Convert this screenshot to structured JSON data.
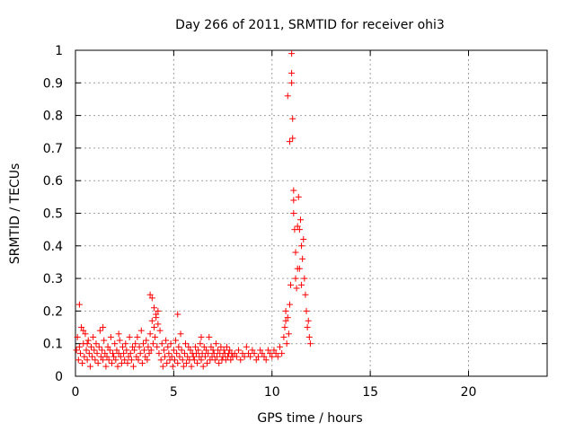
{
  "chart_data": {
    "type": "scatter",
    "title": "Day 266 of 2011, SRMTID for receiver ohi3",
    "xlabel": "GPS time / hours",
    "ylabel": "SRMTID / TECUs",
    "xlim": [
      0,
      24
    ],
    "ylim": [
      0,
      1
    ],
    "xticks": [
      0,
      5,
      10,
      15,
      20
    ],
    "xtick_labels": [
      "0",
      "5",
      "10",
      "15",
      "20"
    ],
    "yticks": [
      0,
      0.1,
      0.2,
      0.3,
      0.4,
      0.5,
      0.6,
      0.7,
      0.8,
      0.9,
      1
    ],
    "ytick_labels": [
      "0",
      "0.1",
      "0.2",
      "0.3",
      "0.4",
      "0.5",
      "0.6",
      "0.7",
      "0.8",
      "0.9",
      "1"
    ],
    "grid": true,
    "marker": "+",
    "marker_color": "#ff0000",
    "series": [
      {
        "name": "SRMTID",
        "x": [
          0.05,
          0.1,
          0.15,
          0.2,
          0.25,
          0.3,
          0.35,
          0.4,
          0.45,
          0.5,
          0.55,
          0.6,
          0.65,
          0.7,
          0.75,
          0.8,
          0.85,
          0.9,
          0.95,
          1.0,
          1.05,
          1.1,
          1.15,
          1.2,
          1.25,
          1.3,
          1.35,
          1.4,
          1.45,
          1.5,
          1.55,
          1.6,
          1.65,
          1.7,
          1.75,
          1.8,
          1.85,
          1.9,
          1.95,
          2.0,
          2.05,
          2.1,
          2.15,
          2.2,
          2.25,
          2.3,
          2.35,
          2.4,
          2.45,
          2.5,
          2.55,
          2.6,
          2.65,
          2.7,
          2.75,
          2.8,
          2.85,
          2.9,
          2.95,
          3.0,
          3.05,
          3.1,
          3.15,
          3.2,
          3.25,
          3.3,
          3.35,
          3.4,
          3.45,
          3.5,
          3.55,
          3.6,
          3.65,
          3.7,
          3.75,
          3.8,
          3.85,
          3.9,
          3.95,
          4.0,
          4.05,
          4.1,
          4.15,
          4.2,
          4.25,
          4.3,
          4.35,
          4.4,
          4.45,
          4.5,
          4.55,
          4.6,
          4.65,
          4.7,
          4.75,
          4.8,
          4.85,
          4.9,
          4.95,
          5.0,
          5.05,
          5.1,
          5.15,
          5.2,
          5.25,
          5.3,
          5.35,
          5.4,
          5.45,
          5.5,
          5.55,
          5.6,
          5.65,
          5.7,
          5.75,
          5.8,
          5.85,
          5.9,
          5.95,
          6.0,
          6.05,
          6.1,
          6.15,
          6.2,
          6.25,
          6.3,
          6.35,
          6.4,
          6.45,
          6.5,
          6.55,
          6.6,
          6.65,
          6.7,
          6.75,
          6.8,
          6.85,
          6.9,
          6.95,
          7.0,
          7.05,
          7.1,
          7.15,
          7.2,
          7.25,
          7.3,
          7.35,
          7.4,
          7.45,
          7.5,
          7.55,
          7.6,
          7.65,
          7.7,
          7.75,
          7.8,
          7.85,
          7.9,
          7.95,
          8.0,
          8.1,
          8.2,
          8.3,
          8.4,
          8.5,
          8.6,
          8.7,
          8.8,
          8.9,
          9.0,
          9.1,
          9.2,
          9.3,
          9.4,
          9.5,
          9.6,
          9.7,
          9.8,
          9.9,
          10.0,
          10.1,
          10.2,
          10.3,
          10.4,
          10.5,
          10.6,
          10.65,
          10.7,
          10.75,
          10.8,
          10.85,
          10.9,
          10.95,
          11.0,
          11.0,
          11.0,
          11.05,
          11.05,
          11.1,
          11.1,
          11.15,
          11.2,
          11.2,
          11.25,
          11.3,
          11.35,
          11.4,
          11.45,
          11.5,
          11.55,
          11.6,
          11.65,
          11.7,
          11.75,
          11.8,
          11.85,
          11.9,
          11.95,
          0.2,
          0.4,
          0.6,
          1.4,
          2.2,
          3.8,
          3.9,
          4.0,
          4.1,
          4.2,
          5.2,
          6.4,
          10.7,
          10.8,
          10.9,
          11.1,
          11.3,
          11.4,
          11.5
        ],
        "y": [
          0.08,
          0.12,
          0.05,
          0.09,
          0.07,
          0.15,
          0.04,
          0.1,
          0.06,
          0.13,
          0.08,
          0.05,
          0.11,
          0.07,
          0.03,
          0.09,
          0.06,
          0.12,
          0.08,
          0.05,
          0.1,
          0.07,
          0.04,
          0.09,
          0.14,
          0.06,
          0.08,
          0.05,
          0.11,
          0.07,
          0.03,
          0.06,
          0.09,
          0.05,
          0.08,
          0.12,
          0.04,
          0.07,
          0.06,
          0.1,
          0.05,
          0.08,
          0.03,
          0.07,
          0.11,
          0.06,
          0.04,
          0.09,
          0.07,
          0.05,
          0.1,
          0.08,
          0.04,
          0.06,
          0.12,
          0.07,
          0.05,
          0.09,
          0.03,
          0.08,
          0.1,
          0.06,
          0.12,
          0.05,
          0.09,
          0.07,
          0.14,
          0.04,
          0.1,
          0.08,
          0.06,
          0.11,
          0.05,
          0.09,
          0.07,
          0.13,
          0.08,
          0.17,
          0.1,
          0.15,
          0.12,
          0.18,
          0.09,
          0.2,
          0.07,
          0.14,
          0.05,
          0.1,
          0.03,
          0.08,
          0.06,
          0.11,
          0.04,
          0.09,
          0.07,
          0.05,
          0.1,
          0.06,
          0.03,
          0.08,
          0.05,
          0.11,
          0.07,
          0.04,
          0.09,
          0.06,
          0.13,
          0.08,
          0.05,
          0.03,
          0.07,
          0.1,
          0.04,
          0.06,
          0.09,
          0.05,
          0.08,
          0.03,
          0.07,
          0.06,
          0.05,
          0.09,
          0.07,
          0.04,
          0.08,
          0.06,
          0.1,
          0.05,
          0.07,
          0.03,
          0.09,
          0.06,
          0.08,
          0.04,
          0.07,
          0.12,
          0.05,
          0.09,
          0.06,
          0.08,
          0.07,
          0.05,
          0.1,
          0.06,
          0.08,
          0.04,
          0.07,
          0.09,
          0.05,
          0.06,
          0.08,
          0.07,
          0.05,
          0.09,
          0.06,
          0.07,
          0.08,
          0.05,
          0.07,
          0.06,
          0.07,
          0.06,
          0.08,
          0.05,
          0.07,
          0.06,
          0.09,
          0.07,
          0.06,
          0.08,
          0.07,
          0.05,
          0.06,
          0.08,
          0.07,
          0.06,
          0.05,
          0.08,
          0.07,
          0.06,
          0.08,
          0.07,
          0.06,
          0.09,
          0.07,
          0.12,
          0.15,
          0.2,
          0.1,
          0.18,
          0.13,
          0.22,
          0.28,
          0.93,
          0.99,
          0.9,
          0.79,
          0.73,
          0.57,
          0.5,
          0.45,
          0.38,
          0.3,
          0.27,
          0.33,
          0.55,
          0.45,
          0.48,
          0.4,
          0.36,
          0.42,
          0.3,
          0.25,
          0.2,
          0.15,
          0.17,
          0.12,
          0.1,
          0.22,
          0.14,
          0.1,
          0.15,
          0.13,
          0.25,
          0.24,
          0.21,
          0.19,
          0.16,
          0.19,
          0.12,
          0.17,
          0.86,
          0.72,
          0.54,
          0.46,
          0.33,
          0.28
        ]
      }
    ]
  }
}
